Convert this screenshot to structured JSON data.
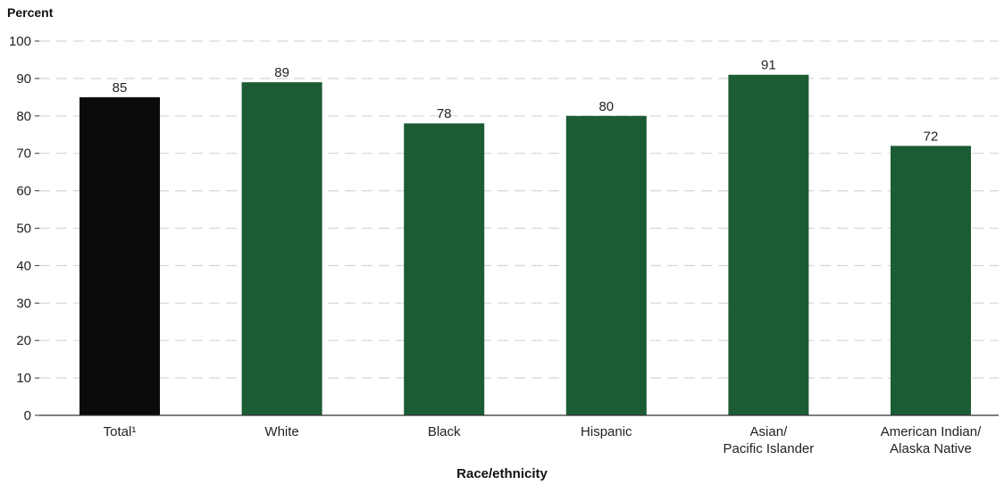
{
  "chart_data": {
    "type": "bar",
    "ylabel": "Percent",
    "xlabel": "Race/ethnicity",
    "ylim": [
      0,
      100
    ],
    "yticks": [
      0,
      10,
      20,
      30,
      40,
      50,
      60,
      70,
      80,
      90,
      100
    ],
    "grid": true,
    "categories": [
      [
        "Total¹"
      ],
      [
        "White"
      ],
      [
        "Black"
      ],
      [
        "Hispanic"
      ],
      [
        "Asian/",
        "Pacific Islander"
      ],
      [
        "American Indian/",
        "Alaska Native"
      ]
    ],
    "values": [
      85,
      89,
      78,
      80,
      91,
      72
    ],
    "colors": [
      "#0c0a0b",
      "#1c5c34",
      "#1c5c34",
      "#1c5c34",
      "#1c5c34",
      "#1c5c34"
    ]
  }
}
